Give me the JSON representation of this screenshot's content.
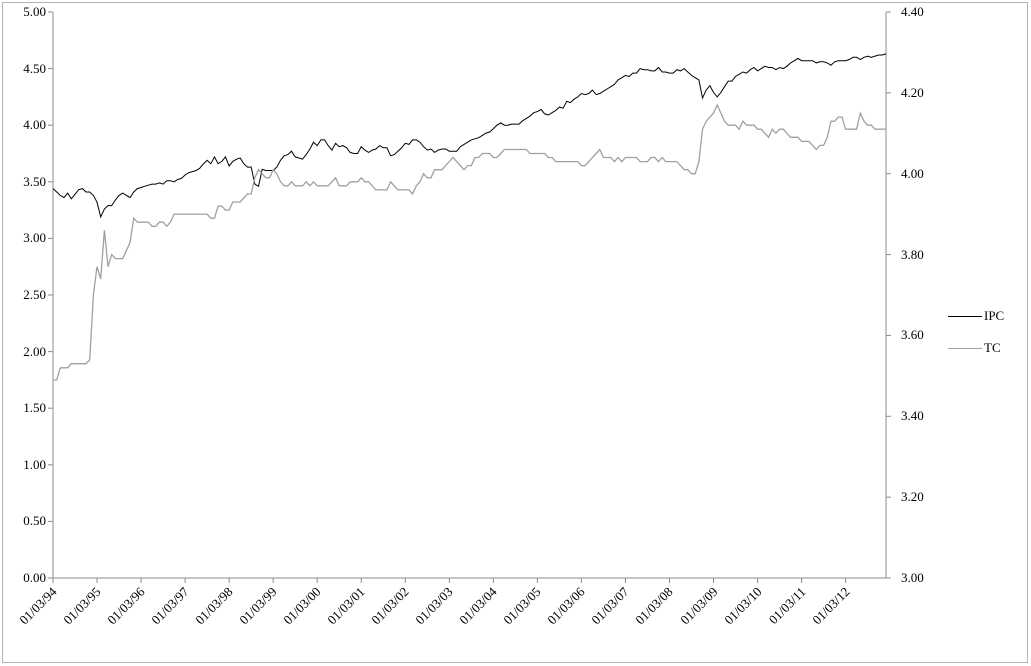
{
  "figure": {
    "background": "#ffffff",
    "border_color": "#b3b3b3"
  },
  "chart_data": {
    "type": "line",
    "title": "",
    "xlabel": "",
    "ylabel_left": "",
    "ylabel_right": "",
    "grid": false,
    "legend_position": "right",
    "axis_color": "#8c8c8c",
    "points_per_tick": 12,
    "x_labels": [
      "01/03/94",
      "01/03/95",
      "01/03/96",
      "01/03/97",
      "01/03/98",
      "01/03/99",
      "01/03/00",
      "01/03/01",
      "01/03/02",
      "01/03/03",
      "01/03/04",
      "01/03/05",
      "01/03/06",
      "01/03/07",
      "01/03/08",
      "01/03/09",
      "01/03/10",
      "01/03/11",
      "01/03/12"
    ],
    "left_axis": {
      "min": 0,
      "max": 5,
      "step": 0.5,
      "ticks": [
        "5.00",
        "4.50",
        "4.00",
        "3.50",
        "3.00",
        "2.50",
        "2.00",
        "1.50",
        "1.00",
        "0.50",
        "0.00"
      ]
    },
    "right_axis": {
      "min": 3,
      "max": 4.4,
      "step": 0.2,
      "ticks": [
        "4.40",
        "4.20",
        "4.00",
        "3.80",
        "3.60",
        "3.40",
        "3.20",
        "3.00"
      ]
    },
    "series": [
      {
        "name": "IPC",
        "axis": "left",
        "color": "#000000",
        "width": 1,
        "values": [
          3.44,
          3.41,
          3.38,
          3.36,
          3.4,
          3.35,
          3.39,
          3.43,
          3.44,
          3.41,
          3.41,
          3.38,
          3.32,
          3.19,
          3.26,
          3.29,
          3.29,
          3.34,
          3.38,
          3.4,
          3.38,
          3.36,
          3.41,
          3.44,
          3.45,
          3.46,
          3.47,
          3.48,
          3.48,
          3.49,
          3.48,
          3.51,
          3.51,
          3.5,
          3.52,
          3.53,
          3.56,
          3.58,
          3.59,
          3.6,
          3.62,
          3.66,
          3.69,
          3.66,
          3.72,
          3.66,
          3.68,
          3.72,
          3.64,
          3.68,
          3.7,
          3.71,
          3.66,
          3.63,
          3.63,
          3.48,
          3.46,
          3.61,
          3.6,
          3.6,
          3.6,
          3.63,
          3.69,
          3.73,
          3.74,
          3.77,
          3.72,
          3.71,
          3.7,
          3.74,
          3.79,
          3.85,
          3.82,
          3.87,
          3.87,
          3.82,
          3.78,
          3.84,
          3.81,
          3.82,
          3.8,
          3.76,
          3.75,
          3.75,
          3.81,
          3.78,
          3.76,
          3.78,
          3.79,
          3.82,
          3.8,
          3.8,
          3.73,
          3.74,
          3.77,
          3.8,
          3.84,
          3.83,
          3.87,
          3.87,
          3.85,
          3.81,
          3.78,
          3.79,
          3.76,
          3.78,
          3.79,
          3.79,
          3.77,
          3.77,
          3.77,
          3.81,
          3.83,
          3.85,
          3.87,
          3.88,
          3.89,
          3.91,
          3.93,
          3.94,
          3.97,
          4.0,
          4.02,
          4.0,
          4.0,
          4.01,
          4.01,
          4.01,
          4.04,
          4.06,
          4.08,
          4.11,
          4.12,
          4.14,
          4.1,
          4.09,
          4.11,
          4.13,
          4.16,
          4.15,
          4.21,
          4.2,
          4.23,
          4.25,
          4.28,
          4.27,
          4.28,
          4.31,
          4.27,
          4.28,
          4.3,
          4.32,
          4.34,
          4.36,
          4.4,
          4.42,
          4.44,
          4.43,
          4.46,
          4.46,
          4.5,
          4.49,
          4.49,
          4.48,
          4.48,
          4.51,
          4.47,
          4.47,
          4.46,
          4.46,
          4.49,
          4.48,
          4.5,
          4.47,
          4.44,
          4.42,
          4.4,
          4.24,
          4.31,
          4.35,
          4.29,
          4.25,
          4.29,
          4.34,
          4.39,
          4.39,
          4.43,
          4.45,
          4.47,
          4.46,
          4.49,
          4.51,
          4.48,
          4.5,
          4.52,
          4.51,
          4.51,
          4.49,
          4.51,
          4.5,
          4.52,
          4.55,
          4.57,
          4.59,
          4.57,
          4.57,
          4.57,
          4.57,
          4.55,
          4.56,
          4.56,
          4.55,
          4.53,
          4.56,
          4.57,
          4.57,
          4.57,
          4.58,
          4.6,
          4.6,
          4.58,
          4.6,
          4.61,
          4.6,
          4.61,
          4.62,
          4.62,
          4.63
        ]
      },
      {
        "name": "TC",
        "axis": "right",
        "color": "#a0a0a0",
        "width": 1.3,
        "values": [
          3.49,
          3.49,
          3.52,
          3.52,
          3.52,
          3.53,
          3.53,
          3.53,
          3.53,
          3.53,
          3.54,
          3.7,
          3.77,
          3.74,
          3.86,
          3.77,
          3.8,
          3.79,
          3.79,
          3.79,
          3.81,
          3.83,
          3.89,
          3.88,
          3.88,
          3.88,
          3.88,
          3.87,
          3.87,
          3.88,
          3.88,
          3.87,
          3.88,
          3.9,
          3.9,
          3.9,
          3.9,
          3.9,
          3.9,
          3.9,
          3.9,
          3.9,
          3.9,
          3.89,
          3.89,
          3.92,
          3.92,
          3.91,
          3.91,
          3.93,
          3.93,
          3.93,
          3.94,
          3.95,
          3.95,
          3.99,
          4.01,
          4.0,
          3.99,
          3.99,
          4.01,
          4.0,
          3.98,
          3.97,
          3.97,
          3.98,
          3.97,
          3.97,
          3.97,
          3.98,
          3.97,
          3.98,
          3.97,
          3.97,
          3.97,
          3.97,
          3.98,
          3.99,
          3.97,
          3.97,
          3.97,
          3.98,
          3.98,
          3.98,
          3.99,
          3.98,
          3.98,
          3.97,
          3.96,
          3.96,
          3.96,
          3.96,
          3.98,
          3.97,
          3.96,
          3.96,
          3.96,
          3.96,
          3.95,
          3.97,
          3.98,
          4.0,
          3.99,
          3.99,
          4.01,
          4.01,
          4.01,
          4.02,
          4.03,
          4.04,
          4.03,
          4.02,
          4.01,
          4.02,
          4.02,
          4.04,
          4.04,
          4.05,
          4.05,
          4.05,
          4.04,
          4.04,
          4.05,
          4.06,
          4.06,
          4.06,
          4.06,
          4.06,
          4.06,
          4.06,
          4.05,
          4.05,
          4.05,
          4.05,
          4.05,
          4.04,
          4.04,
          4.03,
          4.03,
          4.03,
          4.03,
          4.03,
          4.03,
          4.03,
          4.02,
          4.02,
          4.03,
          4.04,
          4.05,
          4.06,
          4.04,
          4.04,
          4.04,
          4.03,
          4.04,
          4.03,
          4.04,
          4.04,
          4.04,
          4.04,
          4.03,
          4.03,
          4.03,
          4.04,
          4.04,
          4.03,
          4.04,
          4.03,
          4.03,
          4.03,
          4.03,
          4.02,
          4.01,
          4.01,
          4.0,
          4.0,
          4.03,
          4.11,
          4.13,
          4.14,
          4.15,
          4.17,
          4.15,
          4.13,
          4.12,
          4.12,
          4.12,
          4.11,
          4.13,
          4.12,
          4.12,
          4.12,
          4.11,
          4.11,
          4.1,
          4.09,
          4.11,
          4.1,
          4.11,
          4.11,
          4.1,
          4.09,
          4.09,
          4.09,
          4.08,
          4.08,
          4.08,
          4.07,
          4.06,
          4.07,
          4.07,
          4.09,
          4.13,
          4.13,
          4.14,
          4.14,
          4.11,
          4.11,
          4.11,
          4.11,
          4.15,
          4.13,
          4.12,
          4.12,
          4.11,
          4.11,
          4.11,
          4.11
        ]
      }
    ]
  }
}
